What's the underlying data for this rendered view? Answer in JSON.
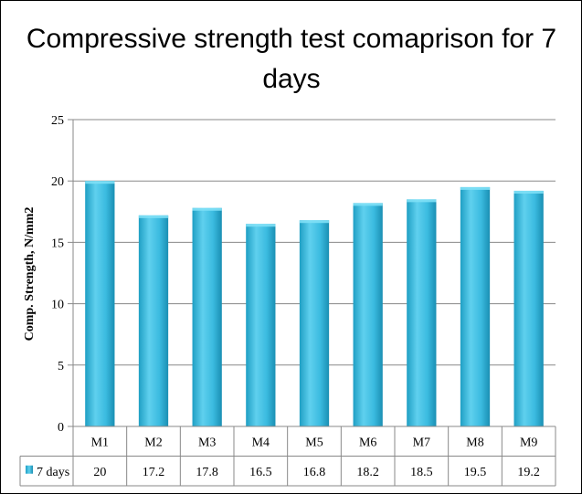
{
  "chart_data": {
    "type": "bar",
    "title": "Compressive strength test comaprison for 7 days",
    "title_lines": [
      "Compressive strength test comaprison for 7",
      "days"
    ],
    "xlabel": "",
    "ylabel": "Comp. Strength, N/mm2",
    "ylim": [
      0,
      25
    ],
    "yticks": [
      0,
      5,
      10,
      15,
      20,
      25
    ],
    "grid": "horizontal",
    "legend": "data-table-left",
    "categories": [
      "M1",
      "M2",
      "M3",
      "M4",
      "M5",
      "M6",
      "M7",
      "M8",
      "M9"
    ],
    "series": [
      {
        "name": "7 days",
        "values": [
          20,
          17.2,
          17.8,
          16.5,
          16.8,
          18.2,
          18.5,
          19.5,
          19.2
        ],
        "value_labels": [
          "20",
          "17.2",
          "17.8",
          "16.5",
          "16.8",
          "18.2",
          "18.5",
          "19.5",
          "19.2"
        ],
        "color": "#3bb8d9"
      }
    ]
  }
}
